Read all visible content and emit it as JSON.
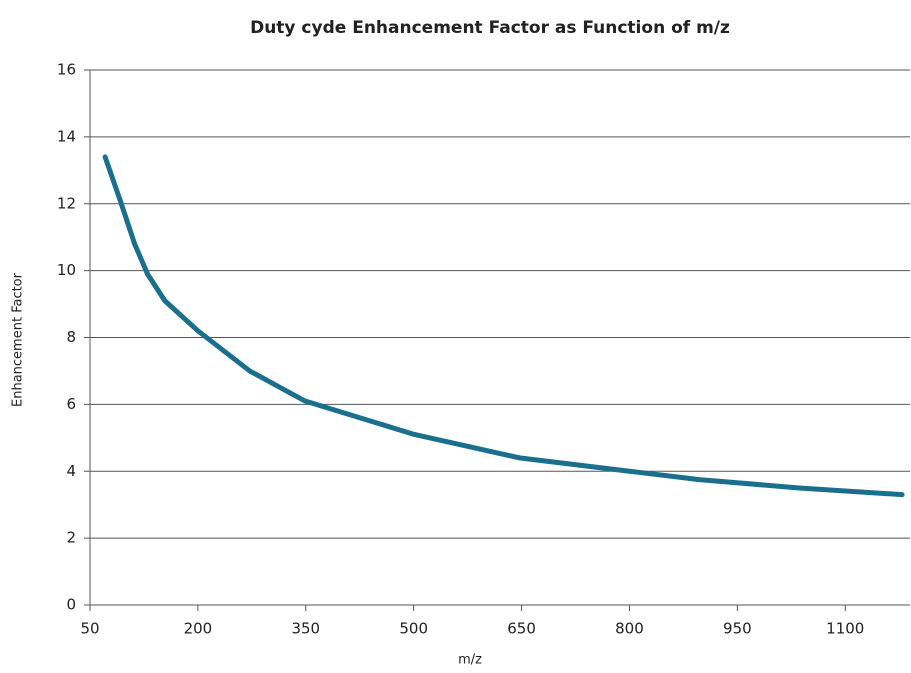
{
  "chart_data": {
    "type": "line",
    "title": "Duty cyde Enhancement Factor as Function of m/z",
    "x_label": "m/z",
    "y_label": "Enhancement Factor",
    "x": [
      71,
      92,
      112,
      130,
      154,
      200,
      272,
      349,
      425,
      501,
      647,
      800,
      897,
      1036,
      1179
    ],
    "series": [
      {
        "name": "Enhancement Factor",
        "color": "#1b6f8e",
        "values": [
          13.4,
          12.1,
          10.8,
          9.9,
          9.1,
          8.2,
          7.0,
          6.1,
          5.6,
          5.1,
          4.4,
          4.0,
          3.75,
          3.5,
          3.3
        ]
      }
    ],
    "xlim": [
      50,
      1190
    ],
    "xticks": [
      50,
      200,
      350,
      500,
      650,
      800,
      950,
      1100
    ],
    "ylim": [
      0,
      16
    ],
    "yticks": [
      0,
      2,
      4,
      6,
      8,
      10,
      12,
      14,
      16
    ],
    "grid": true
  }
}
